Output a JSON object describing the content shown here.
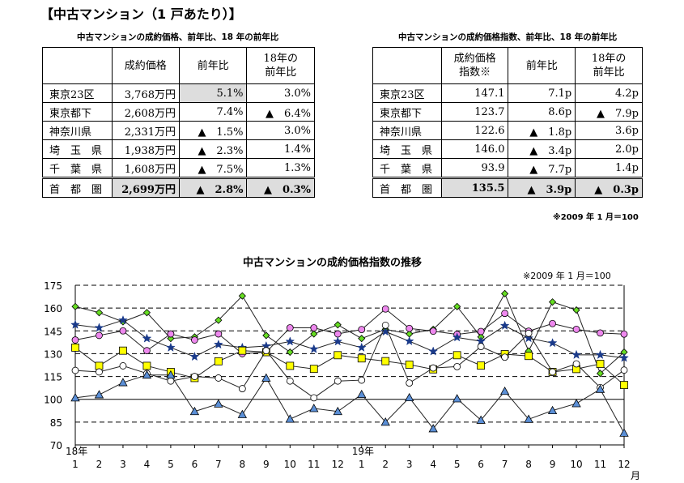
{
  "title": "【中古マンション（1 戸あたり）】",
  "table1": {
    "caption": "中古マンションの成約価格、前年比、18 年の前年比",
    "headers": [
      "",
      "成約価格",
      "前年比",
      "18年の\n前年比"
    ],
    "rows": [
      [
        "東京23区",
        "3,768万円",
        "5.1%",
        "3.0%"
      ],
      [
        "東京都下",
        "2,608万円",
        "7.4%",
        "▲　6.4%"
      ],
      [
        "神奈川県",
        "2,331万円",
        "▲　1.5%",
        "3.0%"
      ],
      [
        "埼　玉　県",
        "1,938万円",
        "▲　2.3%",
        "1.4%"
      ],
      [
        "千　葉　県",
        "1,608万円",
        "▲　7.5%",
        "1.3%"
      ],
      [
        "首　都　圏",
        "2,699万円",
        "▲　2.8%",
        "▲　0.3%"
      ]
    ]
  },
  "table2": {
    "caption": "中古マンションの成約価格指数、前年比、18 年の前年比",
    "headers": [
      "",
      "成約価格\n指数※",
      "前年比",
      "18年の\n前年比"
    ],
    "rows": [
      [
        "東京23区",
        "147.1",
        "7.1p",
        "4.2p"
      ],
      [
        "東京都下",
        "123.7",
        "8.6p",
        "▲　7.9p"
      ],
      [
        "神奈川県",
        "122.6",
        "▲　1.8p",
        "3.6p"
      ],
      [
        "埼　玉　県",
        "146.0",
        "▲　3.4p",
        "2.0p"
      ],
      [
        "千　葉　県",
        "93.9",
        "▲　7.7p",
        "1.4p"
      ],
      [
        "首　都　圏",
        "135.5",
        "▲　3.9p",
        "▲　0.3p"
      ]
    ],
    "note": "※2009 年 1 月＝100"
  },
  "chart_data": {
    "type": "line",
    "title": "中古マンションの成約価格指数の推移",
    "note": "※2009 年 1 月＝100",
    "x": [
      "1",
      "2",
      "3",
      "4",
      "5",
      "6",
      "7",
      "8",
      "9",
      "10",
      "11",
      "12",
      "1",
      "2",
      "3",
      "4",
      "5",
      "6",
      "7",
      "8",
      "9",
      "10",
      "11",
      "12"
    ],
    "year_labels": [
      {
        "index": 0,
        "label": "18年"
      },
      {
        "index": 12,
        "label": "19年"
      }
    ],
    "xunit": "月",
    "ylim": [
      70,
      175
    ],
    "yticks": [
      70,
      85,
      100,
      115,
      130,
      145,
      160,
      175
    ],
    "grid": "dashed horizontal, solid at 100",
    "series": [
      {
        "marker": "diamond",
        "color": "#66dd22",
        "values": [
          161,
          157,
          151,
          157,
          140,
          141,
          152,
          168,
          142,
          131,
          143,
          149,
          140,
          146,
          143,
          146,
          161,
          141,
          169.5,
          131.7,
          164,
          158.7,
          117,
          131
        ]
      },
      {
        "marker": "circle",
        "color": "#ee88ee",
        "values": [
          139,
          142,
          145,
          132,
          143,
          139,
          143,
          130,
          131,
          147,
          147,
          143,
          145.9,
          159.4,
          146.6,
          144.8,
          142.7,
          144.6,
          156.5,
          144.8,
          149.8,
          146,
          143.6,
          142.9
        ]
      },
      {
        "marker": "star",
        "color": "#1a3a8a",
        "values": [
          149,
          147,
          152,
          140,
          134,
          128,
          136,
          134,
          135,
          138,
          133,
          138,
          134,
          144.5,
          138.2,
          131.5,
          140.7,
          138.2,
          148.4,
          140.2,
          137,
          129.2,
          129.2,
          127.2
        ]
      },
      {
        "marker": "square",
        "color": "#ffff00",
        "values": [
          134,
          122,
          132,
          122,
          118,
          114,
          125,
          132,
          131,
          122,
          120,
          129,
          126.9,
          125.1,
          122.8,
          119.7,
          129,
          122.2,
          129.7,
          128.5,
          118,
          119.9,
          123.3,
          109.4
        ]
      },
      {
        "marker": "open-circle",
        "color": "#ffffff",
        "values": [
          119,
          118,
          122,
          117,
          112,
          115,
          114,
          107,
          132,
          112,
          101,
          112,
          112.6,
          148.7,
          110.7,
          120.6,
          121.5,
          134.7,
          127.7,
          143.4,
          118,
          123.3,
          107.7,
          119.2
        ]
      },
      {
        "marker": "triangle",
        "color": "#5b8fd6",
        "values": [
          101,
          103,
          111,
          116,
          116,
          92,
          97,
          90,
          114,
          87,
          94,
          92,
          103.2,
          85,
          101.1,
          80.7,
          100.4,
          86.3,
          105.3,
          86.9,
          92.6,
          97.2,
          106.6,
          77.8
        ]
      }
    ]
  }
}
